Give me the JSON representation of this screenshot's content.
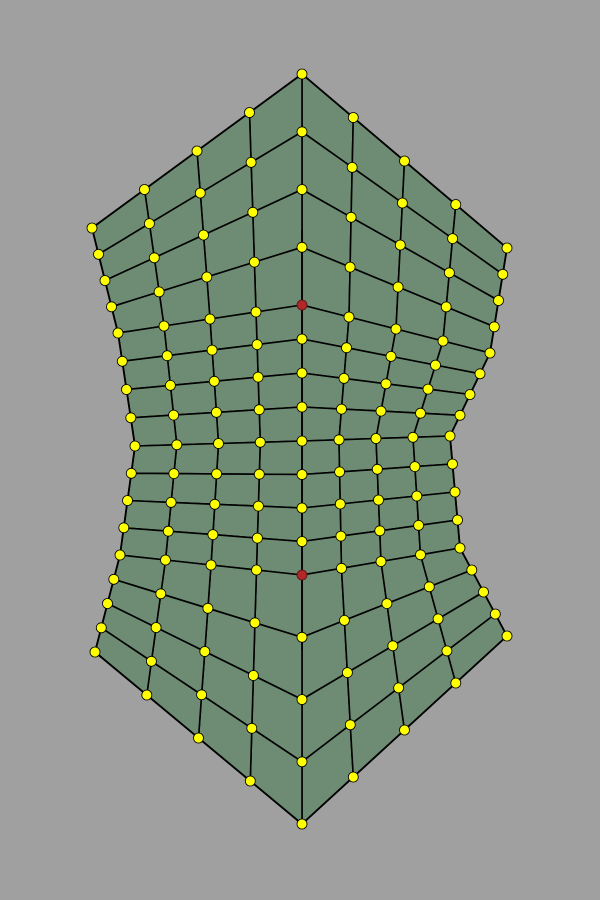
{
  "viewport": {
    "background": "#a0a0a0"
  },
  "mesh": {
    "quad_fill": "#6d8c73",
    "highlight_fill": "#c7cb70",
    "edge_color": "#000000",
    "vertex_color": "#ffff00",
    "singular_vertex_color": "#b02828",
    "singular_vertex_count": 2
  }
}
